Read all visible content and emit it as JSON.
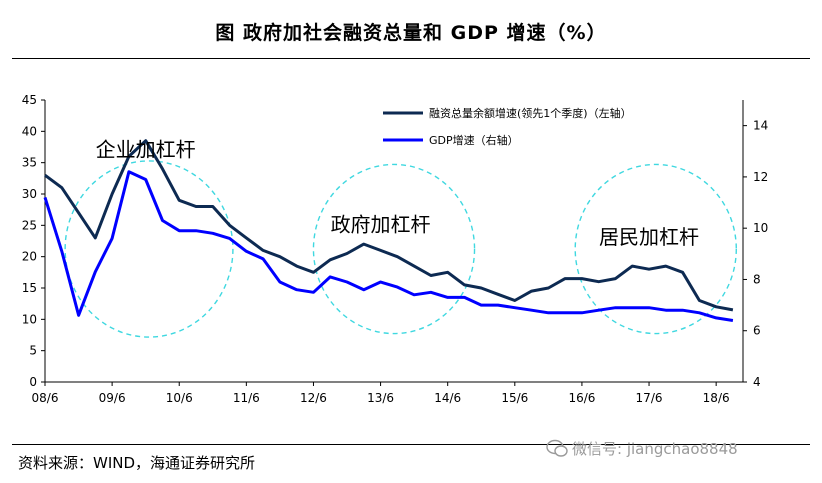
{
  "header": {
    "title": "图    政府加社会融资总量和 GDP 增速（%）"
  },
  "footer": {
    "source": "资料来源：WIND，海通证券研究所"
  },
  "watermark": {
    "text": "微信号: jiangchao8848",
    "icon": "wechat-icon"
  },
  "colors": {
    "tsf": "#0d2a52",
    "gdp": "#0000ff",
    "circle": "#3fd8e0",
    "axis": "#000000"
  },
  "chart_data": {
    "type": "line",
    "title": "政府加社会融资总量和 GDP 增速（%）",
    "categories": [
      "08/6",
      "09/6",
      "10/6",
      "11/6",
      "12/6",
      "13/6",
      "14/6",
      "15/6",
      "16/6",
      "17/6",
      "18/6"
    ],
    "left_axis": {
      "min": 0,
      "max": 45,
      "ticks": [
        0,
        5,
        10,
        15,
        20,
        25,
        30,
        35,
        40,
        45
      ]
    },
    "right_axis": {
      "min": 4,
      "max": 15,
      "ticks": [
        4,
        6,
        8,
        10,
        12,
        14
      ]
    },
    "series": [
      {
        "name": "融资总量余额增速(领先1个季度)（左轴）",
        "axis": "left",
        "x": [
          2008.5,
          2008.75,
          2009.0,
          2009.25,
          2009.5,
          2009.75,
          2010.0,
          2010.25,
          2010.5,
          2010.75,
          2011.0,
          2011.25,
          2011.5,
          2011.75,
          2012.0,
          2012.25,
          2012.5,
          2012.75,
          2013.0,
          2013.25,
          2013.5,
          2013.75,
          2014.0,
          2014.25,
          2014.5,
          2014.75,
          2015.0,
          2015.25,
          2015.5,
          2015.75,
          2016.0,
          2016.25,
          2016.5,
          2016.75,
          2017.0,
          2017.25,
          2017.5,
          2017.75,
          2018.0,
          2018.25,
          2018.5,
          2018.75
        ],
        "values": [
          33,
          31,
          27,
          23,
          30,
          36,
          38.5,
          34,
          29,
          28,
          28,
          25,
          23,
          21,
          20,
          18.5,
          17.5,
          19.5,
          20.5,
          22,
          21,
          20,
          18.5,
          17,
          17.5,
          15.5,
          15,
          14,
          13,
          14.5,
          15,
          16.5,
          16.5,
          16,
          16.5,
          18.5,
          18,
          18.5,
          17.5,
          13,
          12,
          11.5
        ]
      },
      {
        "name": "GDP增速（右轴）",
        "axis": "right",
        "x": [
          2008.5,
          2008.75,
          2009.0,
          2009.25,
          2009.5,
          2009.75,
          2010.0,
          2010.25,
          2010.5,
          2010.75,
          2011.0,
          2011.25,
          2011.5,
          2011.75,
          2012.0,
          2012.25,
          2012.5,
          2012.75,
          2013.0,
          2013.25,
          2013.5,
          2013.75,
          2014.0,
          2014.25,
          2014.5,
          2014.75,
          2015.0,
          2015.25,
          2015.5,
          2015.75,
          2016.0,
          2016.25,
          2016.5,
          2016.75,
          2017.0,
          2017.25,
          2017.5,
          2017.75,
          2018.0,
          2018.25,
          2018.5,
          2018.75
        ],
        "values": [
          11.2,
          9.1,
          6.6,
          8.3,
          9.6,
          12.2,
          11.9,
          10.3,
          9.9,
          9.9,
          9.8,
          9.6,
          9.1,
          8.8,
          7.9,
          7.6,
          7.5,
          8.1,
          7.9,
          7.6,
          7.9,
          7.7,
          7.4,
          7.5,
          7.3,
          7.3,
          7.0,
          7.0,
          6.9,
          6.8,
          6.7,
          6.7,
          6.7,
          6.8,
          6.9,
          6.9,
          6.9,
          6.8,
          6.8,
          6.7,
          6.5,
          6.4
        ]
      }
    ],
    "annotations": [
      {
        "text": "企业加杠杆",
        "x": 2010.0,
        "y": 36
      },
      {
        "text": "政府加杠杆",
        "x": 2013.5,
        "y": 24
      },
      {
        "text": "居民加杠杆",
        "x": 2017.5,
        "y": 22
      }
    ],
    "highlight_regions": [
      {
        "label": "企业加杠杆",
        "x_from": 2008.8,
        "x_to": 2011.3
      },
      {
        "label": "政府加杠杆",
        "x_from": 2012.5,
        "x_to": 2014.9
      },
      {
        "label": "居民加杠杆",
        "x_from": 2016.4,
        "x_to": 2018.8
      }
    ],
    "legend": {
      "position": "top-right"
    },
    "grid": false
  }
}
